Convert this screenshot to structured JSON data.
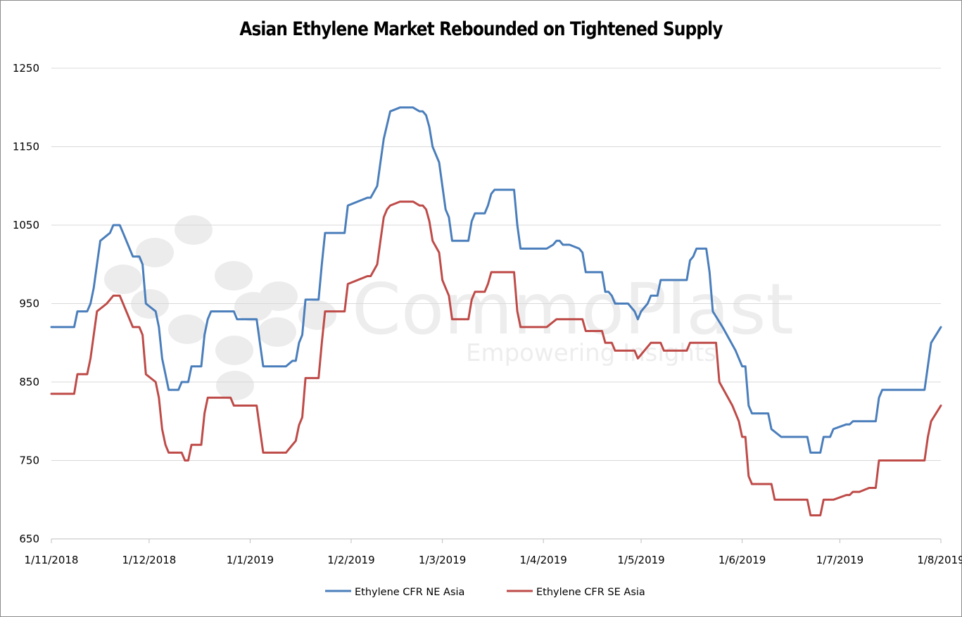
{
  "chart_data": {
    "type": "line",
    "title": "Asian Ethylene Market Rebounded on Tightened Supply",
    "xlabel": "",
    "ylabel": "",
    "ylim": [
      650,
      1250
    ],
    "yticks": [
      650,
      750,
      850,
      950,
      1050,
      1150,
      1250
    ],
    "xlim": [
      "2018-11-01",
      "2019-08-01"
    ],
    "xticks": [
      "2018-11-01",
      "2018-12-01",
      "2019-01-01",
      "2019-02-01",
      "2019-03-01",
      "2019-04-01",
      "2019-05-01",
      "2019-06-01",
      "2019-07-01",
      "2019-08-01"
    ],
    "xtick_labels": [
      "1/11/2018",
      "1/12/2018",
      "1/1/2019",
      "1/2/2019",
      "1/3/2019",
      "1/4/2019",
      "1/5/2019",
      "1/6/2019",
      "1/7/2019",
      "1/8/2019"
    ],
    "grid": "horizontal",
    "legend": "bottom",
    "series": [
      {
        "name": "Ethylene CFR NE Asia",
        "color": "#4a7ebb",
        "points": [
          [
            "2018-11-01",
            920
          ],
          [
            "2018-11-08",
            920
          ],
          [
            "2018-11-09",
            940
          ],
          [
            "2018-11-12",
            940
          ],
          [
            "2018-11-13",
            950
          ],
          [
            "2018-11-14",
            970
          ],
          [
            "2018-11-15",
            1000
          ],
          [
            "2018-11-16",
            1030
          ],
          [
            "2018-11-19",
            1040
          ],
          [
            "2018-11-20",
            1050
          ],
          [
            "2018-11-22",
            1050
          ],
          [
            "2018-11-23",
            1040
          ],
          [
            "2018-11-26",
            1010
          ],
          [
            "2018-11-28",
            1010
          ],
          [
            "2018-11-29",
            1000
          ],
          [
            "2018-11-30",
            950
          ],
          [
            "2018-12-03",
            940
          ],
          [
            "2018-12-04",
            920
          ],
          [
            "2018-12-05",
            880
          ],
          [
            "2018-12-06",
            860
          ],
          [
            "2018-12-07",
            840
          ],
          [
            "2018-12-10",
            840
          ],
          [
            "2018-12-11",
            850
          ],
          [
            "2018-12-13",
            850
          ],
          [
            "2018-12-14",
            870
          ],
          [
            "2018-12-17",
            870
          ],
          [
            "2018-12-18",
            910
          ],
          [
            "2018-12-19",
            930
          ],
          [
            "2018-12-20",
            940
          ],
          [
            "2018-12-27",
            940
          ],
          [
            "2018-12-28",
            930
          ],
          [
            "2019-01-03",
            930
          ],
          [
            "2019-01-04",
            900
          ],
          [
            "2019-01-05",
            870
          ],
          [
            "2019-01-12",
            870
          ],
          [
            "2019-01-14",
            877
          ],
          [
            "2019-01-15",
            877
          ],
          [
            "2019-01-16",
            900
          ],
          [
            "2019-01-17",
            910
          ],
          [
            "2019-01-18",
            955
          ],
          [
            "2019-01-22",
            955
          ],
          [
            "2019-01-23",
            1000
          ],
          [
            "2019-01-24",
            1040
          ],
          [
            "2019-01-30",
            1040
          ],
          [
            "2019-01-31",
            1075
          ],
          [
            "2019-02-06",
            1085
          ],
          [
            "2019-02-07",
            1085
          ],
          [
            "2019-02-09",
            1100
          ],
          [
            "2019-02-10",
            1130
          ],
          [
            "2019-02-11",
            1160
          ],
          [
            "2019-02-13",
            1195
          ],
          [
            "2019-02-16",
            1200
          ],
          [
            "2019-02-20",
            1200
          ],
          [
            "2019-02-22",
            1195
          ],
          [
            "2019-02-23",
            1195
          ],
          [
            "2019-02-24",
            1190
          ],
          [
            "2019-02-25",
            1175
          ],
          [
            "2019-02-26",
            1150
          ],
          [
            "2019-02-28",
            1130
          ],
          [
            "2019-03-01",
            1100
          ],
          [
            "2019-03-02",
            1070
          ],
          [
            "2019-03-03",
            1060
          ],
          [
            "2019-03-04",
            1030
          ],
          [
            "2019-03-09",
            1030
          ],
          [
            "2019-03-10",
            1055
          ],
          [
            "2019-03-11",
            1065
          ],
          [
            "2019-03-14",
            1065
          ],
          [
            "2019-03-15",
            1075
          ],
          [
            "2019-03-16",
            1090
          ],
          [
            "2019-03-17",
            1095
          ],
          [
            "2019-03-23",
            1095
          ],
          [
            "2019-03-24",
            1050
          ],
          [
            "2019-03-25",
            1020
          ],
          [
            "2019-04-02",
            1020
          ],
          [
            "2019-04-04",
            1025
          ],
          [
            "2019-04-05",
            1030
          ],
          [
            "2019-04-06",
            1030
          ],
          [
            "2019-04-07",
            1025
          ],
          [
            "2019-04-09",
            1025
          ],
          [
            "2019-04-12",
            1020
          ],
          [
            "2019-04-13",
            1015
          ],
          [
            "2019-04-14",
            990
          ],
          [
            "2019-04-19",
            990
          ],
          [
            "2019-04-20",
            965
          ],
          [
            "2019-04-21",
            965
          ],
          [
            "2019-04-22",
            960
          ],
          [
            "2019-04-23",
            950
          ],
          [
            "2019-04-27",
            950
          ],
          [
            "2019-04-29",
            940
          ],
          [
            "2019-04-30",
            930
          ],
          [
            "2019-05-01",
            940
          ],
          [
            "2019-05-03",
            950
          ],
          [
            "2019-05-04",
            960
          ],
          [
            "2019-05-06",
            960
          ],
          [
            "2019-05-07",
            980
          ],
          [
            "2019-05-15",
            980
          ],
          [
            "2019-05-16",
            1005
          ],
          [
            "2019-05-17",
            1010
          ],
          [
            "2019-05-18",
            1020
          ],
          [
            "2019-05-21",
            1020
          ],
          [
            "2019-05-22",
            990
          ],
          [
            "2019-05-23",
            940
          ],
          [
            "2019-05-26",
            920
          ],
          [
            "2019-05-30",
            890
          ],
          [
            "2019-06-01",
            870
          ],
          [
            "2019-06-02",
            870
          ],
          [
            "2019-06-03",
            820
          ],
          [
            "2019-06-04",
            810
          ],
          [
            "2019-06-09",
            810
          ],
          [
            "2019-06-10",
            790
          ],
          [
            "2019-06-13",
            780
          ],
          [
            "2019-06-21",
            780
          ],
          [
            "2019-06-22",
            760
          ],
          [
            "2019-06-25",
            760
          ],
          [
            "2019-06-26",
            780
          ],
          [
            "2019-06-28",
            780
          ],
          [
            "2019-06-29",
            790
          ],
          [
            "2019-07-03",
            796
          ],
          [
            "2019-07-04",
            796
          ],
          [
            "2019-07-05",
            800
          ],
          [
            "2019-07-12",
            800
          ],
          [
            "2019-07-13",
            830
          ],
          [
            "2019-07-14",
            840
          ],
          [
            "2019-07-27",
            840
          ],
          [
            "2019-07-29",
            900
          ],
          [
            "2019-08-01",
            920
          ]
        ]
      },
      {
        "name": "Ethylene CFR SE Asia",
        "color": "#be4b48",
        "points": [
          [
            "2018-11-01",
            835
          ],
          [
            "2018-11-08",
            835
          ],
          [
            "2018-11-09",
            860
          ],
          [
            "2018-11-12",
            860
          ],
          [
            "2018-11-13",
            880
          ],
          [
            "2018-11-14",
            910
          ],
          [
            "2018-11-15",
            940
          ],
          [
            "2018-11-18",
            950
          ],
          [
            "2018-11-20",
            960
          ],
          [
            "2018-11-22",
            960
          ],
          [
            "2018-11-23",
            950
          ],
          [
            "2018-11-26",
            920
          ],
          [
            "2018-11-28",
            920
          ],
          [
            "2018-11-29",
            910
          ],
          [
            "2018-11-30",
            860
          ],
          [
            "2018-12-03",
            850
          ],
          [
            "2018-12-04",
            830
          ],
          [
            "2018-12-05",
            790
          ],
          [
            "2018-12-06",
            770
          ],
          [
            "2018-12-07",
            760
          ],
          [
            "2018-12-11",
            760
          ],
          [
            "2018-12-12",
            750
          ],
          [
            "2018-12-13",
            750
          ],
          [
            "2018-12-14",
            770
          ],
          [
            "2018-12-17",
            770
          ],
          [
            "2018-12-18",
            810
          ],
          [
            "2018-12-19",
            830
          ],
          [
            "2018-12-26",
            830
          ],
          [
            "2018-12-27",
            820
          ],
          [
            "2019-01-03",
            820
          ],
          [
            "2019-01-04",
            790
          ],
          [
            "2019-01-05",
            760
          ],
          [
            "2019-01-12",
            760
          ],
          [
            "2019-01-14",
            770
          ],
          [
            "2019-01-15",
            775
          ],
          [
            "2019-01-16",
            795
          ],
          [
            "2019-01-17",
            805
          ],
          [
            "2019-01-18",
            855
          ],
          [
            "2019-01-22",
            855
          ],
          [
            "2019-01-23",
            900
          ],
          [
            "2019-01-24",
            940
          ],
          [
            "2019-01-30",
            940
          ],
          [
            "2019-01-31",
            975
          ],
          [
            "2019-02-06",
            985
          ],
          [
            "2019-02-07",
            985
          ],
          [
            "2019-02-09",
            1000
          ],
          [
            "2019-02-10",
            1030
          ],
          [
            "2019-02-11",
            1060
          ],
          [
            "2019-02-12",
            1070
          ],
          [
            "2019-02-13",
            1075
          ],
          [
            "2019-02-16",
            1080
          ],
          [
            "2019-02-20",
            1080
          ],
          [
            "2019-02-22",
            1075
          ],
          [
            "2019-02-23",
            1075
          ],
          [
            "2019-02-24",
            1070
          ],
          [
            "2019-02-25",
            1055
          ],
          [
            "2019-02-26",
            1030
          ],
          [
            "2019-02-28",
            1015
          ],
          [
            "2019-03-01",
            980
          ],
          [
            "2019-03-02",
            970
          ],
          [
            "2019-03-03",
            960
          ],
          [
            "2019-03-04",
            930
          ],
          [
            "2019-03-09",
            930
          ],
          [
            "2019-03-10",
            955
          ],
          [
            "2019-03-11",
            965
          ],
          [
            "2019-03-14",
            965
          ],
          [
            "2019-03-15",
            975
          ],
          [
            "2019-03-16",
            990
          ],
          [
            "2019-03-23",
            990
          ],
          [
            "2019-03-24",
            940
          ],
          [
            "2019-03-25",
            920
          ],
          [
            "2019-04-02",
            920
          ],
          [
            "2019-04-05",
            930
          ],
          [
            "2019-04-13",
            930
          ],
          [
            "2019-04-14",
            915
          ],
          [
            "2019-04-19",
            915
          ],
          [
            "2019-04-20",
            900
          ],
          [
            "2019-04-22",
            900
          ],
          [
            "2019-04-23",
            890
          ],
          [
            "2019-04-29",
            890
          ],
          [
            "2019-04-30",
            880
          ],
          [
            "2019-05-01",
            885
          ],
          [
            "2019-05-03",
            895
          ],
          [
            "2019-05-04",
            900
          ],
          [
            "2019-05-07",
            900
          ],
          [
            "2019-05-08",
            890
          ],
          [
            "2019-05-15",
            890
          ],
          [
            "2019-05-16",
            900
          ],
          [
            "2019-05-24",
            900
          ],
          [
            "2019-05-25",
            850
          ],
          [
            "2019-05-29",
            820
          ],
          [
            "2019-05-31",
            800
          ],
          [
            "2019-06-01",
            780
          ],
          [
            "2019-06-02",
            780
          ],
          [
            "2019-06-03",
            730
          ],
          [
            "2019-06-04",
            720
          ],
          [
            "2019-06-10",
            720
          ],
          [
            "2019-06-11",
            700
          ],
          [
            "2019-06-21",
            700
          ],
          [
            "2019-06-22",
            680
          ],
          [
            "2019-06-25",
            680
          ],
          [
            "2019-06-26",
            700
          ],
          [
            "2019-06-29",
            700
          ],
          [
            "2019-07-03",
            706
          ],
          [
            "2019-07-04",
            706
          ],
          [
            "2019-07-05",
            710
          ],
          [
            "2019-07-07",
            710
          ],
          [
            "2019-07-10",
            715
          ],
          [
            "2019-07-12",
            715
          ],
          [
            "2019-07-13",
            750
          ],
          [
            "2019-07-27",
            750
          ],
          [
            "2019-07-28",
            780
          ],
          [
            "2019-07-29",
            800
          ],
          [
            "2019-08-01",
            820
          ]
        ]
      }
    ]
  },
  "watermark": {
    "brand": "CommoPlast",
    "tagline": "Empowering Insights"
  }
}
